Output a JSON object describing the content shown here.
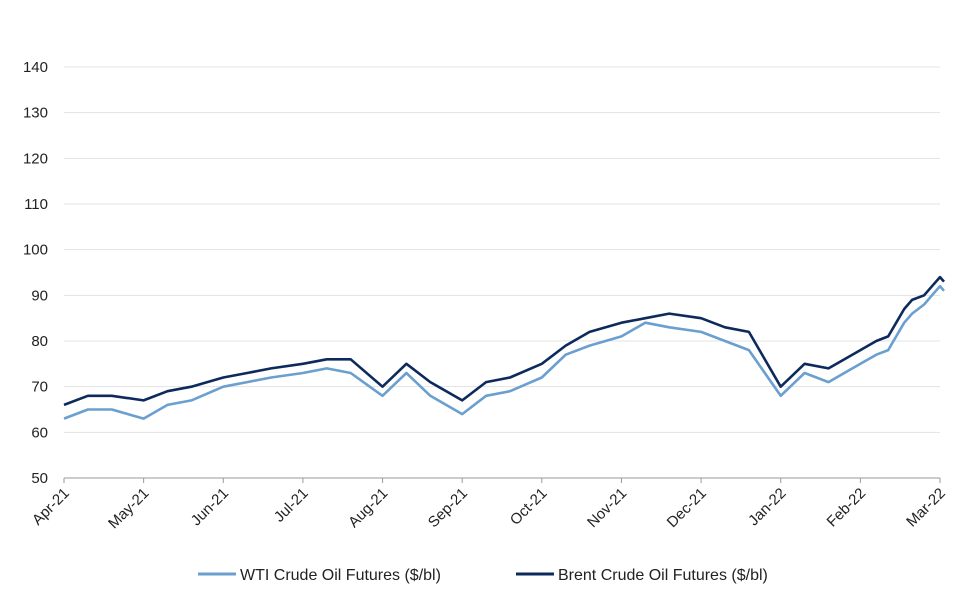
{
  "chart_data": {
    "type": "line",
    "title": "",
    "xlabel": "",
    "ylabel": "",
    "ylim": [
      50,
      140
    ],
    "yticks": [
      50,
      60,
      70,
      80,
      90,
      100,
      110,
      120,
      130,
      140
    ],
    "x_tick_labels": [
      "Apr-21",
      "May-21",
      "Jun-21",
      "Jul-21",
      "Aug-21",
      "Sep-21",
      "Oct-21",
      "Nov-21",
      "Dec-21",
      "Jan-22",
      "Feb-22",
      "Mar-22"
    ],
    "grid": "horizontal",
    "legend_position": "bottom",
    "x_months": [
      0,
      0.3,
      0.6,
      1,
      1.3,
      1.6,
      2,
      2.3,
      2.6,
      3,
      3.3,
      3.6,
      4,
      4.3,
      4.6,
      5,
      5.3,
      5.6,
      6,
      6.3,
      6.6,
      7,
      7.3,
      7.6,
      8,
      8.3,
      8.6,
      9,
      9.3,
      9.6,
      10,
      10.2,
      10.35,
      10.45,
      10.55,
      10.65,
      10.8,
      10.9,
      11,
      11.05
    ],
    "series": [
      {
        "name": "WTI Crude Oil Futures ($/bl)",
        "color": "#6a9fcf",
        "values": [
          63,
          65,
          65,
          63,
          66,
          67,
          70,
          71,
          72,
          73,
          74,
          73,
          68,
          73,
          68,
          64,
          68,
          69,
          72,
          77,
          79,
          81,
          84,
          83,
          82,
          80,
          78,
          68,
          73,
          71,
          75,
          77,
          78,
          81,
          84,
          86,
          88,
          90,
          92,
          91
        ]
      },
      {
        "name": "Brent Crude Oil Futures ($/bl)",
        "color": "#0d2a5c",
        "values": [
          66,
          68,
          68,
          67,
          69,
          70,
          72,
          73,
          74,
          75,
          76,
          76,
          70,
          75,
          71,
          67,
          71,
          72,
          75,
          79,
          82,
          84,
          85,
          86,
          85,
          83,
          82,
          70,
          75,
          74,
          78,
          80,
          81,
          84,
          87,
          89,
          90,
          92,
          94,
          93
        ]
      }
    ]
  }
}
